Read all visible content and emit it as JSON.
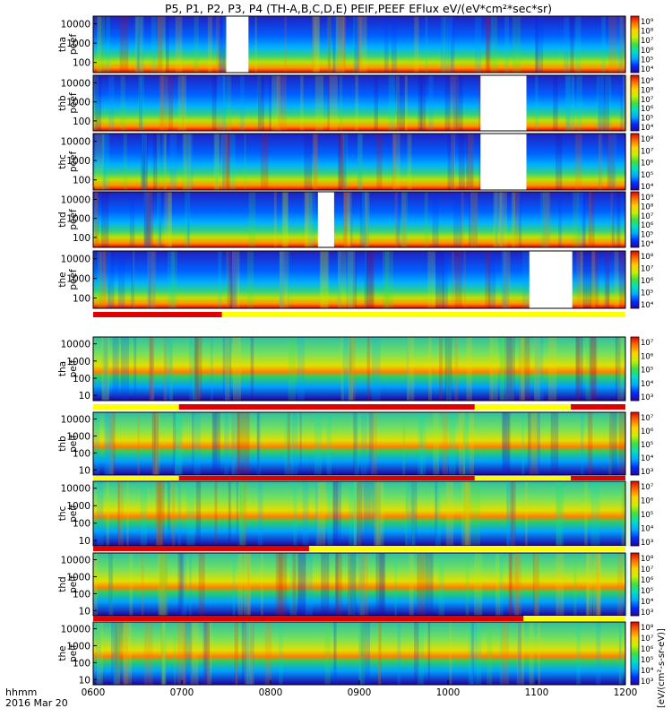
{
  "chart_data": {
    "type": "heatmap",
    "title": "P5, P1, P2, P3, P4 (TH-A,B,C,D,E) PEIF,PEEF EFlux eV/(eV*cm²*sec*sr)",
    "x_axis": {
      "range": [
        "0600",
        "1200"
      ],
      "ticks": [
        "0600",
        "0700",
        "0800",
        "0900",
        "1000",
        "1100",
        "1200"
      ],
      "label": "hhmm",
      "date": "2016 Mar 20"
    },
    "y_axis": {
      "scale": "log",
      "ticks_electron": [
        "100",
        "1000",
        "10000"
      ],
      "ticks_ion": [
        "10",
        "100",
        "1000",
        "10000"
      ]
    },
    "colorbar_label": "[eV/(cm²-s-sr-eV)]",
    "colorscale": [
      "#2a00a0",
      "#0030ff",
      "#00a8ff",
      "#00e0c0",
      "#40e040",
      "#c8f000",
      "#ffd000",
      "#ff7000",
      "#e00000"
    ],
    "panels": [
      {
        "name": "tha peef",
        "species": "electron",
        "probe": "tha",
        "label1": "tha",
        "label2": "peef",
        "cb_ticks": [
          "10⁹",
          "10⁸",
          "10⁷",
          "10⁶",
          "10⁵",
          "10⁴"
        ],
        "data_gaps": [
          [
            "0730",
            "0745"
          ]
        ]
      },
      {
        "name": "thb peef",
        "species": "electron",
        "probe": "thb",
        "label1": "thb",
        "label2": "peef",
        "cb_ticks": [
          "10⁹",
          "10⁸",
          "10⁷",
          "10⁶",
          "10⁵",
          "10⁴"
        ],
        "data_gaps": [
          [
            "1022",
            "1053"
          ]
        ]
      },
      {
        "name": "thc peef",
        "species": "electron",
        "probe": "thc",
        "label1": "thc",
        "label2": "peef",
        "cb_ticks": [
          "10⁸",
          "10⁷",
          "10⁶",
          "10⁵",
          "10⁴"
        ],
        "data_gaps": [
          [
            "1022",
            "1053"
          ]
        ]
      },
      {
        "name": "thd peef",
        "species": "electron",
        "probe": "thd",
        "label1": "thd",
        "label2": "peef",
        "cb_ticks": [
          "10⁹",
          "10⁸",
          "10⁷",
          "10⁶",
          "10⁵",
          "10⁴"
        ],
        "data_gaps": [
          [
            "0832",
            "0843"
          ]
        ]
      },
      {
        "name": "the peef",
        "species": "electron",
        "probe": "the",
        "label1": "the",
        "label2": "peef",
        "cb_ticks": [
          "10⁸",
          "10⁷",
          "10⁶",
          "10⁵",
          "10⁴"
        ],
        "data_gaps": [
          [
            "1055",
            "1124"
          ]
        ]
      },
      {
        "name": "tha peif",
        "species": "ion",
        "probe": "tha",
        "label1": "tha",
        "label2": "peif",
        "cb_ticks": [
          "10⁷",
          "10⁶",
          "10⁵",
          "10⁴",
          "10³"
        ],
        "data_gaps": []
      },
      {
        "name": "thb peif",
        "species": "ion",
        "probe": "thb",
        "label1": "thb",
        "label2": "peif",
        "cb_ticks": [
          "10⁷",
          "10⁶",
          "10⁵",
          "10⁴",
          "10³"
        ],
        "data_gaps": []
      },
      {
        "name": "thc peif",
        "species": "ion",
        "probe": "thc",
        "label1": "thc",
        "label2": "peif",
        "cb_ticks": [
          "10⁷",
          "10⁶",
          "10⁵",
          "10⁴",
          "10³"
        ],
        "data_gaps": []
      },
      {
        "name": "thd peif",
        "species": "ion",
        "probe": "thd",
        "label1": "thd",
        "label2": "peif",
        "cb_ticks": [
          "10⁸",
          "10⁷",
          "10⁶",
          "10⁵",
          "10⁴",
          "10³"
        ],
        "data_gaps": []
      },
      {
        "name": "the peif",
        "species": "ion",
        "probe": "the",
        "label1": "the",
        "label2": "peif",
        "cb_ticks": [
          "10⁸",
          "10⁷",
          "10⁶",
          "10⁵",
          "10⁴",
          "10³"
        ],
        "data_gaps": []
      }
    ],
    "mode_bars": [
      {
        "before_panel": "tha peif",
        "red": [
          [
            "0600",
            "0727"
          ]
        ]
      },
      {
        "before_panel": "thb peif",
        "red": [
          [
            "0658",
            "1018"
          ],
          [
            "1123",
            "1200"
          ]
        ]
      },
      {
        "before_panel": "thc peif",
        "red": [
          [
            "0658",
            "1018"
          ],
          [
            "1123",
            "1200"
          ]
        ]
      },
      {
        "before_panel": "thd peif",
        "red": [
          [
            "0600",
            "0826"
          ]
        ]
      },
      {
        "before_panel": "the peif",
        "red": [
          [
            "0600",
            "1051"
          ]
        ]
      }
    ]
  }
}
